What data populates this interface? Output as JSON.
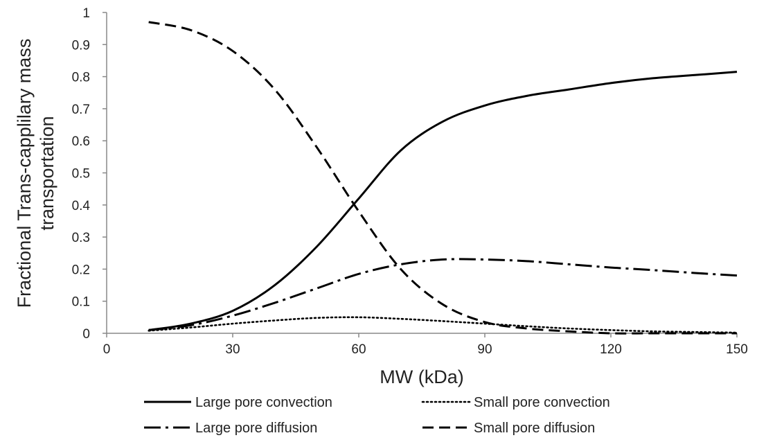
{
  "chart_data": {
    "type": "line",
    "xlabel": "MW (kDa)",
    "ylabel_lines": [
      "Fractional Trans-capplilary mass",
      "transportation"
    ],
    "xlim": [
      0,
      150
    ],
    "ylim": [
      0,
      1
    ],
    "x_ticks": [
      0,
      30,
      60,
      90,
      120,
      150
    ],
    "x_tick_labels": [
      "0",
      "30",
      "60",
      "90",
      "120",
      "150"
    ],
    "y_ticks": [
      0,
      0.1,
      0.2,
      0.3,
      0.4,
      0.5,
      0.6,
      0.7,
      0.8,
      0.9,
      1
    ],
    "y_tick_labels": [
      "0",
      "0.1",
      "0.2",
      "0.3",
      "0.4",
      "0.5",
      "0.6",
      "0.7",
      "0.8",
      "0.9",
      "1"
    ],
    "grid": false,
    "legend_position": "bottom",
    "line_color": "#000000",
    "x": [
      10,
      20,
      30,
      40,
      50,
      60,
      70,
      80,
      90,
      100,
      110,
      120,
      130,
      140,
      150
    ],
    "series": [
      {
        "name": "Large pore convection",
        "style": "solid",
        "values": [
          0.01,
          0.03,
          0.07,
          0.15,
          0.27,
          0.42,
          0.57,
          0.66,
          0.71,
          0.74,
          0.76,
          0.78,
          0.795,
          0.805,
          0.815
        ]
      },
      {
        "name": "Small pore convection",
        "style": "dotted",
        "values": [
          0.008,
          0.018,
          0.03,
          0.04,
          0.048,
          0.05,
          0.045,
          0.038,
          0.03,
          0.022,
          0.015,
          0.01,
          0.006,
          0.004,
          0.002
        ]
      },
      {
        "name": "Large pore diffusion",
        "style": "dashdot",
        "values": [
          0.01,
          0.025,
          0.055,
          0.095,
          0.14,
          0.185,
          0.215,
          0.23,
          0.23,
          0.225,
          0.215,
          0.205,
          0.197,
          0.188,
          0.18
        ]
      },
      {
        "name": "Small pore diffusion",
        "style": "dashed",
        "values": [
          0.97,
          0.945,
          0.88,
          0.76,
          0.58,
          0.38,
          0.2,
          0.09,
          0.035,
          0.015,
          0.006,
          0.0,
          0.0,
          0.0,
          0.0
        ]
      }
    ]
  }
}
